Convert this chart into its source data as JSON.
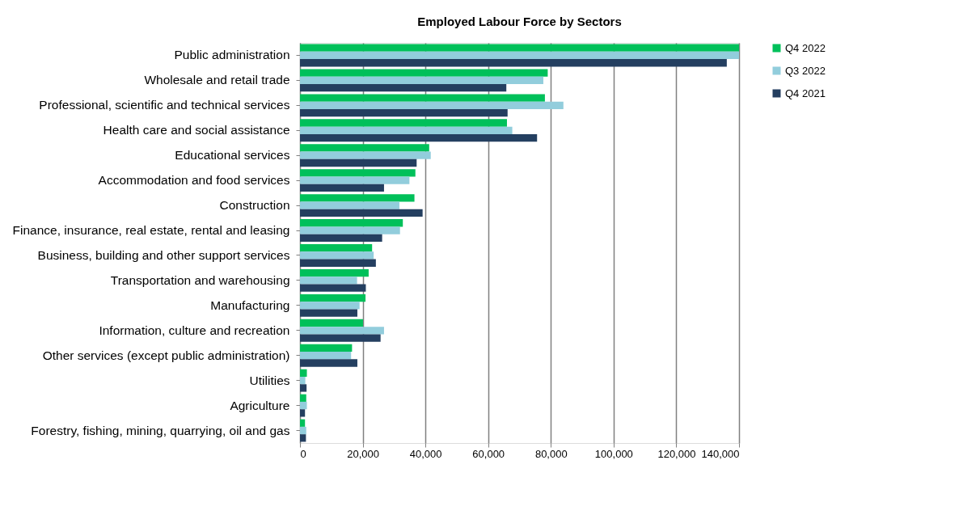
{
  "chart_data": {
    "type": "bar",
    "orientation": "horizontal",
    "title": "Employed Labour Force by Sectors",
    "categories": [
      "Public administration",
      "Wholesale and retail trade",
      "Professional, scientific and technical services",
      "Health care and social assistance",
      "Educational services",
      "Accommodation and food services",
      "Construction",
      "Finance, insurance, real estate, rental and leasing",
      "Business, building and other support services",
      "Transportation and warehousing",
      "Manufacturing",
      "Information, culture and recreation",
      "Other services (except public administration)",
      "Utilities",
      "Agriculture",
      "Forestry, fishing, mining, quarrying, oil and gas"
    ],
    "series": [
      {
        "name": "Q4 2022",
        "color": "#00c05a",
        "values": [
          140000,
          79000,
          78100,
          66000,
          41200,
          36800,
          36500,
          32800,
          23000,
          21900,
          20900,
          20100,
          16600,
          2200,
          2000,
          1600
        ]
      },
      {
        "name": "Q3 2022",
        "color": "#92cddc",
        "values": [
          140000,
          77600,
          84000,
          67700,
          41700,
          34900,
          31700,
          31900,
          23500,
          18200,
          19000,
          26800,
          16300,
          1700,
          2200,
          2000
        ]
      },
      {
        "name": "Q4 2021",
        "color": "#243f60",
        "values": [
          136100,
          65800,
          66200,
          75600,
          37200,
          26800,
          39100,
          26200,
          24200,
          21000,
          18300,
          25700,
          18300,
          2100,
          1600,
          1900
        ]
      }
    ],
    "xlim": [
      0,
      140000
    ],
    "xticks": [
      0,
      {
        "value": 20000,
        "label": "20,000"
      },
      {
        "value": 40000,
        "label": "40,000"
      },
      {
        "value": 60000,
        "label": "60,000"
      },
      {
        "value": 80000,
        "label": "80,000"
      },
      {
        "value": 100000,
        "label": "100,000"
      },
      {
        "value": 120000,
        "label": "120,000"
      },
      {
        "value": 140000,
        "label": "140,000"
      }
    ],
    "grid": "x",
    "legend": "right"
  }
}
